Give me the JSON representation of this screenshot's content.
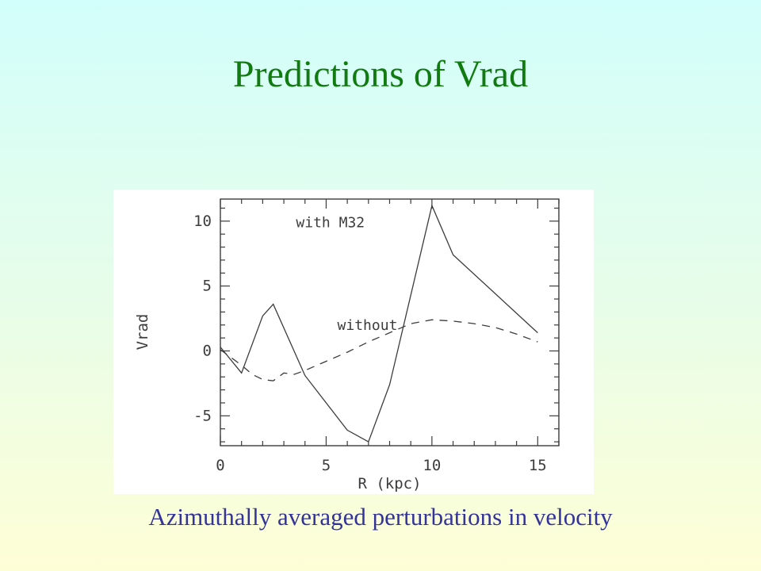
{
  "slide": {
    "title": "Predictions of Vrad",
    "title_color": "#117a11",
    "caption": "Azimuthally averaged perturbations in velocity",
    "caption_color": "#333399",
    "background_top_color": "#d2fefb",
    "background_bottom_color": "#fefed6",
    "panel_color": "#ffffff"
  },
  "chart_data": {
    "type": "line",
    "title": "",
    "xlabel": "R (kpc)",
    "ylabel": "Vrad",
    "xlim": [
      0,
      16
    ],
    "ylim": [
      -7.3,
      11.7
    ],
    "xticks_major": [
      0,
      5,
      10,
      15
    ],
    "yticks_major": [
      -5,
      0,
      5,
      10
    ],
    "minor_tick_step": 1,
    "grid": false,
    "legend_position": "inline-labels",
    "ink_color": "#3c3c3c",
    "series": [
      {
        "name": "with M32",
        "style": "solid",
        "label_pos": [
          5.2,
          9.9
        ],
        "points": [
          [
            0,
            0.3
          ],
          [
            1,
            -1.7
          ],
          [
            2,
            2.7
          ],
          [
            2.5,
            3.6
          ],
          [
            4,
            -1.9
          ],
          [
            6,
            -6.1
          ],
          [
            7,
            -7.0
          ],
          [
            8,
            -2.6
          ],
          [
            10,
            11.2
          ],
          [
            11,
            7.4
          ],
          [
            15,
            1.4
          ]
        ]
      },
      {
        "name": "without",
        "style": "dashed",
        "label_pos": [
          6.95,
          2.0
        ],
        "points": [
          [
            0,
            0.1
          ],
          [
            0.5,
            -0.5
          ],
          [
            1,
            -1.1
          ],
          [
            1.5,
            -1.8
          ],
          [
            2,
            -2.2
          ],
          [
            2.5,
            -2.3
          ],
          [
            3,
            -1.7
          ],
          [
            3.5,
            -1.8
          ],
          [
            4,
            -1.5
          ],
          [
            5,
            -0.8
          ],
          [
            6,
            -0.1
          ],
          [
            7,
            0.7
          ],
          [
            8,
            1.4
          ],
          [
            9,
            2.1
          ],
          [
            10,
            2.4
          ],
          [
            11,
            2.3
          ],
          [
            12,
            2.1
          ],
          [
            13,
            1.8
          ],
          [
            14,
            1.3
          ],
          [
            15,
            0.7
          ]
        ]
      }
    ]
  }
}
